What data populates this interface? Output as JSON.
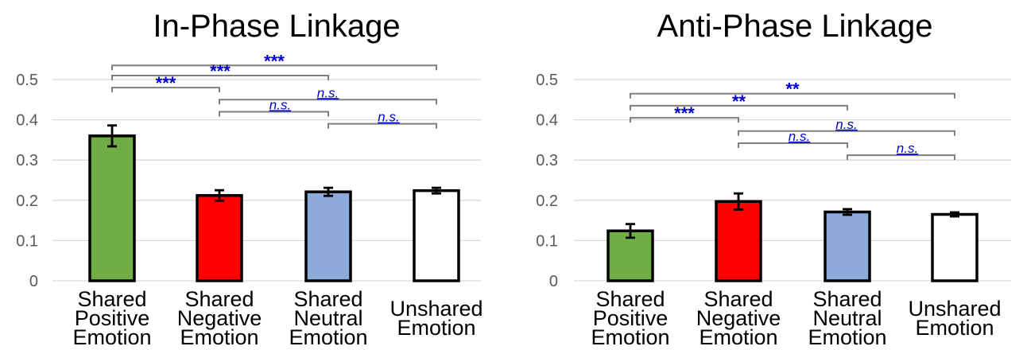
{
  "chart_data": [
    {
      "type": "bar",
      "title": "In-Phase Linkage",
      "categories": [
        [
          "Shared",
          "Positive",
          "Emotion"
        ],
        [
          "Shared",
          "Negative",
          "Emotion"
        ],
        [
          "Shared",
          "Neutral",
          "Emotion"
        ],
        [
          "Unshared",
          "Emotion"
        ]
      ],
      "values": [
        0.36,
        0.212,
        0.221,
        0.224
      ],
      "errors": [
        0.026,
        0.013,
        0.01,
        0.007
      ],
      "colors": [
        "#70ad47",
        "#ff0000",
        "#8eaadb",
        "#ffffff"
      ],
      "ylim": [
        0,
        0.5
      ],
      "yticks": [
        "0",
        "0.1",
        "0.2",
        "0.3",
        "0.4",
        "0.5"
      ],
      "grid": true,
      "comparisons": [
        {
          "from": 0,
          "to": 3,
          "y": 0.535,
          "label": "***"
        },
        {
          "from": 0,
          "to": 2,
          "y": 0.51,
          "label": "***"
        },
        {
          "from": 0,
          "to": 1,
          "y": 0.48,
          "label": "***"
        },
        {
          "from": 1,
          "to": 3,
          "y": 0.45,
          "label": "n.s."
        },
        {
          "from": 1,
          "to": 2,
          "y": 0.42,
          "label": "n.s."
        },
        {
          "from": 2,
          "to": 3,
          "y": 0.39,
          "label": "n.s."
        }
      ]
    },
    {
      "type": "bar",
      "title": "Anti-Phase Linkage",
      "categories": [
        [
          "Shared",
          "Positive",
          "Emotion"
        ],
        [
          "Shared",
          "Negative",
          "Emotion"
        ],
        [
          "Shared",
          "Neutral",
          "Emotion"
        ],
        [
          "Unshared",
          "Emotion"
        ]
      ],
      "values": [
        0.124,
        0.197,
        0.171,
        0.165
      ],
      "errors": [
        0.017,
        0.02,
        0.007,
        0.005
      ],
      "colors": [
        "#70ad47",
        "#ff0000",
        "#8eaadb",
        "#ffffff"
      ],
      "ylim": [
        0,
        0.5
      ],
      "yticks": [
        "0",
        "0.1",
        "0.2",
        "0.3",
        "0.4",
        "0.5"
      ],
      "grid": true,
      "comparisons": [
        {
          "from": 0,
          "to": 3,
          "y": 0.465,
          "label": "**"
        },
        {
          "from": 0,
          "to": 2,
          "y": 0.435,
          "label": "**"
        },
        {
          "from": 0,
          "to": 1,
          "y": 0.405,
          "label": "***"
        },
        {
          "from": 1,
          "to": 3,
          "y": 0.372,
          "label": "n.s."
        },
        {
          "from": 1,
          "to": 2,
          "y": 0.342,
          "label": "n.s."
        },
        {
          "from": 2,
          "to": 3,
          "y": 0.312,
          "label": "n.s."
        }
      ]
    }
  ]
}
